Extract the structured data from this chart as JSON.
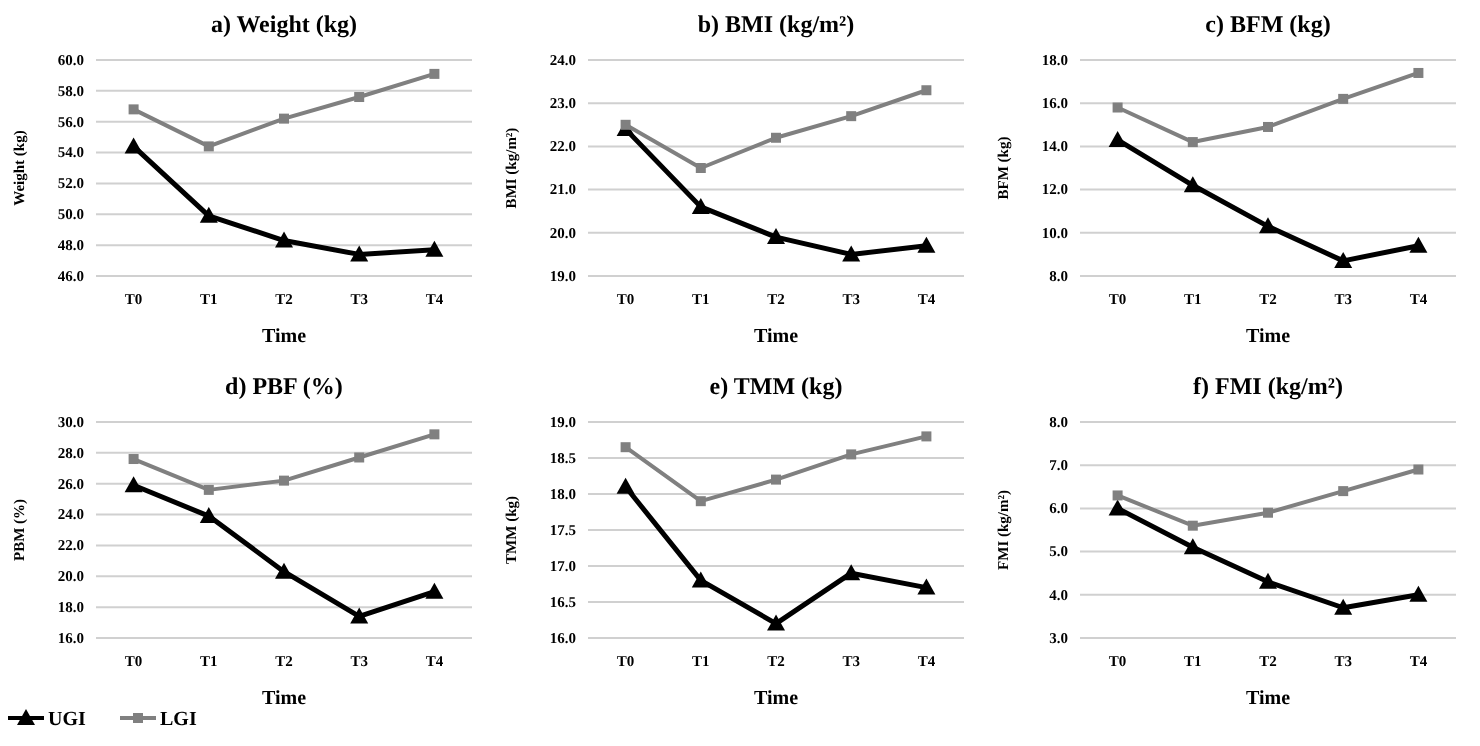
{
  "chart_data": [
    {
      "type": "line",
      "title": "a) Weight (kg)",
      "xlabel": "Time",
      "ylabel": "Weight (kg)",
      "categories": [
        "T0",
        "T1",
        "T2",
        "T3",
        "T4"
      ],
      "ylim": [
        46,
        60
      ],
      "yticks": [
        {
          "value": 46,
          "label": "46.0"
        },
        {
          "value": 48,
          "label": "48.0"
        },
        {
          "value": 50,
          "label": "50.0"
        },
        {
          "value": 52,
          "label": "52.0"
        },
        {
          "value": 54,
          "label": "54.0"
        },
        {
          "value": 56,
          "label": "56.0"
        },
        {
          "value": 58,
          "label": "58.0"
        },
        {
          "value": 60,
          "label": "60.0"
        }
      ],
      "grid": "y",
      "series": [
        {
          "color": "#000000",
          "marker": "triangle",
          "values": [
            54.4,
            49.9,
            48.3,
            47.4,
            47.7
          ]
        },
        {
          "color": "#808080",
          "marker": "square",
          "values": [
            56.8,
            54.4,
            56.2,
            57.6,
            59.1
          ]
        }
      ]
    },
    {
      "type": "line",
      "title": "b) BMI (kg/m²)",
      "xlabel": "Time",
      "ylabel": "BMI (kg/m²)",
      "categories": [
        "T0",
        "T1",
        "T2",
        "T3",
        "T4"
      ],
      "ylim": [
        19,
        24
      ],
      "yticks": [
        {
          "value": 19,
          "label": "19.0"
        },
        {
          "value": 20,
          "label": "20.0"
        },
        {
          "value": 21,
          "label": "21.0"
        },
        {
          "value": 22,
          "label": "22.0"
        },
        {
          "value": 23,
          "label": "23.0"
        },
        {
          "value": 24,
          "label": "24.0"
        }
      ],
      "grid": "y",
      "series": [
        {
          "color": "#000000",
          "marker": "triangle",
          "values": [
            22.4,
            20.6,
            19.9,
            19.5,
            19.7
          ]
        },
        {
          "color": "#808080",
          "marker": "square",
          "values": [
            22.5,
            21.5,
            22.2,
            22.7,
            23.3
          ]
        }
      ]
    },
    {
      "type": "line",
      "title": "c) BFM (kg)",
      "xlabel": "Time",
      "ylabel": "BFM (kg)",
      "categories": [
        "T0",
        "T1",
        "T2",
        "T3",
        "T4"
      ],
      "ylim": [
        8,
        18
      ],
      "yticks": [
        {
          "value": 8,
          "label": "8.0"
        },
        {
          "value": 10,
          "label": "10.0"
        },
        {
          "value": 12,
          "label": "12.0"
        },
        {
          "value": 14,
          "label": "14.0"
        },
        {
          "value": 16,
          "label": "16.0"
        },
        {
          "value": 18,
          "label": "18.0"
        }
      ],
      "grid": "y",
      "series": [
        {
          "color": "#000000",
          "marker": "triangle",
          "values": [
            14.3,
            12.2,
            10.3,
            8.7,
            9.4
          ]
        },
        {
          "color": "#808080",
          "marker": "square",
          "values": [
            15.8,
            14.2,
            14.9,
            16.2,
            17.4
          ]
        }
      ]
    },
    {
      "type": "line",
      "title": "d) PBF (%)",
      "xlabel": "Time",
      "ylabel": "PBM (%)",
      "categories": [
        "T0",
        "T1",
        "T2",
        "T3",
        "T4"
      ],
      "ylim": [
        16,
        30
      ],
      "yticks": [
        {
          "value": 16,
          "label": "16.0"
        },
        {
          "value": 18,
          "label": "18.0"
        },
        {
          "value": 20,
          "label": "20.0"
        },
        {
          "value": 22,
          "label": "22.0"
        },
        {
          "value": 24,
          "label": "24.0"
        },
        {
          "value": 26,
          "label": "26.0"
        },
        {
          "value": 28,
          "label": "28.0"
        },
        {
          "value": 30,
          "label": "30.0"
        }
      ],
      "grid": "y",
      "legend": "bottom",
      "series": [
        {
          "name": "UGI",
          "color": "#000000",
          "marker": "triangle",
          "values": [
            25.9,
            23.9,
            20.3,
            17.4,
            19.0
          ]
        },
        {
          "name": "LGI",
          "color": "#808080",
          "marker": "square",
          "values": [
            27.6,
            25.6,
            26.2,
            27.7,
            29.2
          ]
        }
      ]
    },
    {
      "type": "line",
      "title": "e) TMM (kg)",
      "xlabel": "Time",
      "ylabel": "TMM (kg)",
      "categories": [
        "T0",
        "T1",
        "T2",
        "T3",
        "T4"
      ],
      "ylim": [
        16,
        19
      ],
      "yticks": [
        {
          "value": 16,
          "label": "16.0"
        },
        {
          "value": 16.5,
          "label": "16.5"
        },
        {
          "value": 17,
          "label": "17.0"
        },
        {
          "value": 17.5,
          "label": "17.5"
        },
        {
          "value": 18,
          "label": "18.0"
        },
        {
          "value": 18.5,
          "label": "18.5"
        },
        {
          "value": 19,
          "label": "19.0"
        }
      ],
      "grid": "y",
      "series": [
        {
          "color": "#000000",
          "marker": "triangle",
          "values": [
            18.1,
            16.8,
            16.2,
            16.9,
            16.7
          ]
        },
        {
          "color": "#808080",
          "marker": "square",
          "values": [
            18.65,
            17.9,
            18.2,
            18.55,
            18.8
          ]
        }
      ]
    },
    {
      "type": "line",
      "title": "f) FMI (kg/m²)",
      "xlabel": "Time",
      "ylabel": "FMI (kg/m²)",
      "categories": [
        "T0",
        "T1",
        "T2",
        "T3",
        "T4"
      ],
      "ylim": [
        3,
        8
      ],
      "yticks": [
        {
          "value": 3,
          "label": "3.0"
        },
        {
          "value": 4,
          "label": "4.0"
        },
        {
          "value": 5,
          "label": "5.0"
        },
        {
          "value": 6,
          "label": "6.0"
        },
        {
          "value": 7,
          "label": "7.0"
        },
        {
          "value": 8,
          "label": "8.0"
        }
      ],
      "grid": "y",
      "series": [
        {
          "color": "#000000",
          "marker": "triangle",
          "values": [
            6.0,
            5.1,
            4.3,
            3.7,
            4.0
          ]
        },
        {
          "color": "#808080",
          "marker": "square",
          "values": [
            6.3,
            5.6,
            5.9,
            6.4,
            6.9
          ]
        }
      ]
    }
  ]
}
